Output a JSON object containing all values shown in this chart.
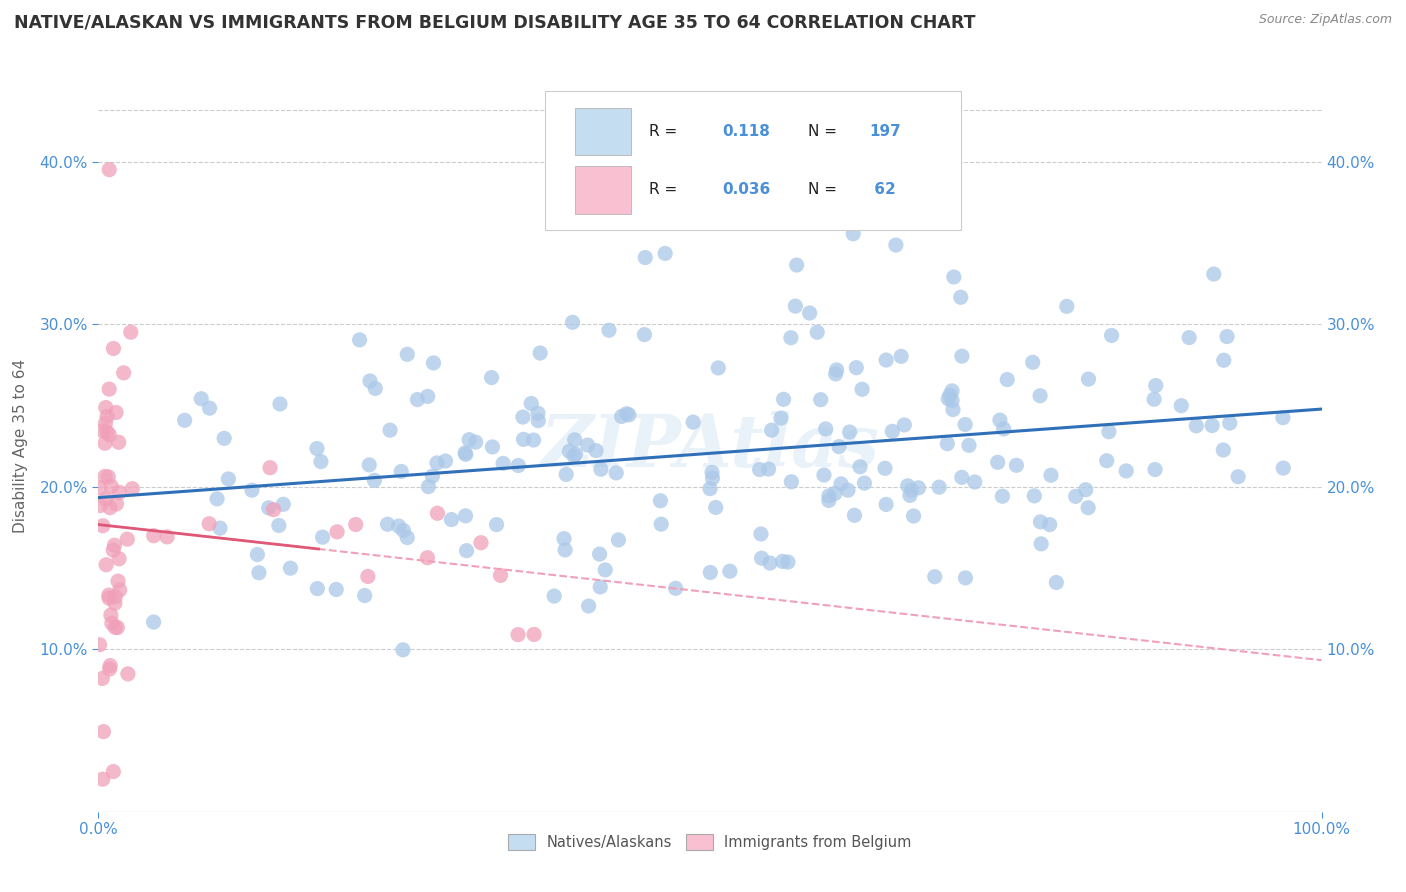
{
  "title": "NATIVE/ALASKAN VS IMMIGRANTS FROM BELGIUM DISABILITY AGE 35 TO 64 CORRELATION CHART",
  "source": "Source: ZipAtlas.com",
  "ylabel": "Disability Age 35 to 64",
  "watermark": "ZIPAtlas",
  "native_R": 0.118,
  "native_N": 197,
  "immigrant_R": 0.036,
  "immigrant_N": 62,
  "native_color": "#aac8e8",
  "native_line_color": "#3070b8",
  "immigrant_color": "#f0a0b8",
  "immigrant_line_color": "#e05878",
  "immigrant_dash_color": "#f0a0b8",
  "background_color": "#ffffff",
  "grid_color": "#cccccc",
  "title_color": "#333333",
  "axis_color": "#4a90d9",
  "legend_native_fill": "#c5ddf0",
  "legend_immigrant_fill": "#f8c0d0",
  "xlim": [
    0.0,
    1.0
  ],
  "ylim": [
    0.0,
    0.45
  ],
  "xtick_positions": [
    0.0,
    1.0
  ],
  "xtick_labels": [
    "0.0%",
    "100.0%"
  ],
  "ytick_positions": [
    0.1,
    0.2,
    0.3,
    0.4
  ],
  "ytick_labels": [
    "10.0%",
    "20.0%",
    "30.0%",
    "40.0%"
  ]
}
